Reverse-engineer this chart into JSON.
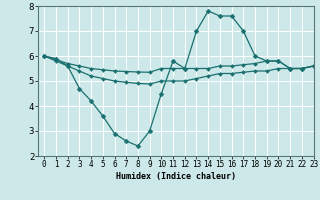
{
  "x": [
    0,
    1,
    2,
    3,
    4,
    5,
    6,
    7,
    8,
    9,
    10,
    11,
    12,
    13,
    14,
    15,
    16,
    17,
    18,
    19,
    20,
    21,
    22,
    23
  ],
  "line1": [
    6.0,
    5.9,
    5.6,
    4.7,
    4.2,
    3.6,
    2.9,
    2.6,
    2.4,
    3.0,
    4.5,
    5.8,
    5.5,
    7.0,
    7.8,
    7.6,
    7.6,
    7.0,
    6.0,
    5.8,
    5.8,
    5.5,
    5.5,
    5.6
  ],
  "line2": [
    6.0,
    5.85,
    5.7,
    5.6,
    5.5,
    5.45,
    5.4,
    5.38,
    5.36,
    5.35,
    5.5,
    5.5,
    5.5,
    5.5,
    5.5,
    5.6,
    5.6,
    5.65,
    5.7,
    5.8,
    5.8,
    5.5,
    5.5,
    5.6
  ],
  "line3": [
    6.0,
    5.8,
    5.6,
    5.4,
    5.2,
    5.1,
    5.0,
    4.95,
    4.9,
    4.88,
    5.0,
    5.0,
    5.0,
    5.1,
    5.2,
    5.3,
    5.3,
    5.35,
    5.4,
    5.4,
    5.5,
    5.5,
    5.5,
    5.6
  ],
  "bg_color": "#cce8e8",
  "line_color": "#1a7070",
  "grid_color": "#ffffff",
  "xlabel": "Humidex (Indice chaleur)",
  "ylim": [
    2,
    8
  ],
  "xlim": [
    -0.5,
    23
  ],
  "yticks": [
    2,
    3,
    4,
    5,
    6,
    7,
    8
  ],
  "xticks": [
    0,
    1,
    2,
    3,
    4,
    5,
    6,
    7,
    8,
    9,
    10,
    11,
    12,
    13,
    14,
    15,
    16,
    17,
    18,
    19,
    20,
    21,
    22,
    23
  ],
  "xlabel_fontsize": 6.0,
  "xlabel_fontweight": "bold",
  "tick_fontsize": 5.5,
  "ytick_fontsize": 6.5,
  "marker_size": 2.5,
  "linewidth": 0.9
}
